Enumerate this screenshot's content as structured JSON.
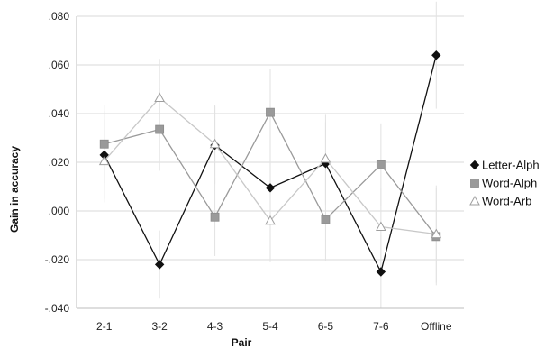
{
  "chart_data": {
    "type": "line",
    "xlabel": "Pair",
    "ylabel": "Gain in accuracy",
    "categories": [
      "2-1",
      "3-2",
      "4-3",
      "5-4",
      "6-5",
      "7-6",
      "Offline"
    ],
    "ylim": [
      -0.04,
      0.08
    ],
    "yticks": [
      -0.04,
      -0.02,
      0.0,
      0.02,
      0.04,
      0.06,
      0.08
    ],
    "ytick_labels": [
      "-.040",
      "-.020",
      ".000",
      ".020",
      ".040",
      ".060",
      ".080"
    ],
    "grid": "horizontal",
    "legend_position": "right",
    "series": [
      {
        "name": "Letter-Alph",
        "marker": "diamond",
        "color": "#111111",
        "values": [
          0.023,
          -0.022,
          0.027,
          0.0095,
          0.0195,
          -0.025,
          0.064
        ],
        "error": [
          0.018,
          0.014,
          0.016,
          0.018,
          0.017,
          0.015,
          0.022
        ]
      },
      {
        "name": "Word-Alph",
        "marker": "square",
        "color": "#9a9a9a",
        "values": [
          0.0275,
          0.0335,
          -0.0025,
          0.0405,
          -0.0035,
          0.019,
          -0.0105
        ],
        "error": [
          0.016,
          0.017,
          0.016,
          0.018,
          0.017,
          0.017,
          0.02
        ]
      },
      {
        "name": "Word-Arb",
        "marker": "triangle",
        "color": "#c8c8c8",
        "values": [
          0.0205,
          0.0465,
          0.0275,
          -0.004,
          0.0215,
          -0.0065,
          -0.0095
        ],
        "error": [
          0.017,
          0.016,
          0.016,
          0.017,
          0.018,
          0.016,
          0.02
        ]
      }
    ]
  }
}
